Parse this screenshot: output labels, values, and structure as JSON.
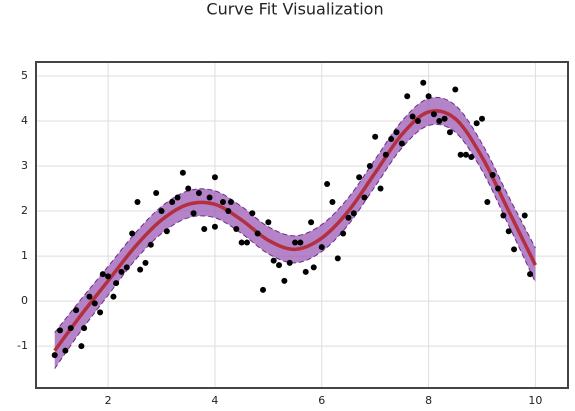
{
  "chart_data": {
    "type": "curve-fit",
    "title": "Curve Fit Visualization",
    "xlim": [
      0.65,
      10.61
    ],
    "ylim": [
      -1.93,
      5.31
    ],
    "xticks": [
      2,
      4,
      6,
      8,
      10
    ],
    "yticks": [
      -1,
      0,
      1,
      2,
      3,
      4,
      5
    ],
    "grid": true,
    "points": {
      "color": "#000000",
      "x": [
        1.0,
        1.1,
        1.2,
        1.3,
        1.4,
        1.5,
        1.55,
        1.65,
        1.75,
        1.85,
        1.9,
        2.0,
        2.1,
        2.15,
        2.25,
        2.35,
        2.45,
        2.55,
        2.6,
        2.7,
        2.8,
        2.9,
        3.0,
        3.1,
        3.2,
        3.3,
        3.4,
        3.5,
        3.6,
        3.7,
        3.8,
        3.9,
        4.0,
        4.0,
        4.15,
        4.25,
        4.3,
        4.4,
        4.5,
        4.6,
        4.7,
        4.8,
        4.9,
        5.0,
        5.1,
        5.2,
        5.3,
        5.4,
        5.5,
        5.6,
        5.7,
        5.8,
        5.85,
        6.0,
        6.1,
        6.2,
        6.3,
        6.4,
        6.5,
        6.6,
        6.7,
        6.8,
        6.9,
        7.0,
        7.1,
        7.2,
        7.3,
        7.4,
        7.5,
        7.6,
        7.7,
        7.8,
        7.9,
        8.0,
        8.1,
        8.2,
        8.3,
        8.4,
        8.5,
        8.6,
        8.7,
        8.8,
        8.9,
        9.0,
        9.1,
        9.2,
        9.3,
        9.4,
        9.5,
        9.6,
        9.8,
        9.9
      ],
      "y": [
        -1.2,
        -0.65,
        -1.1,
        -0.6,
        -0.2,
        -1.0,
        -0.6,
        0.1,
        -0.05,
        -0.25,
        0.6,
        0.55,
        0.1,
        0.4,
        0.65,
        0.75,
        1.5,
        2.2,
        0.7,
        0.85,
        1.25,
        2.4,
        2.0,
        1.55,
        2.2,
        2.3,
        2.85,
        2.5,
        1.95,
        2.4,
        1.6,
        2.3,
        1.65,
        2.75,
        2.2,
        2.0,
        2.2,
        1.6,
        1.3,
        1.3,
        1.95,
        1.5,
        0.25,
        1.75,
        0.9,
        0.8,
        0.45,
        0.85,
        1.3,
        1.3,
        0.65,
        1.75,
        0.75,
        1.2,
        2.6,
        2.2,
        0.95,
        1.5,
        1.85,
        1.95,
        2.75,
        2.3,
        3.0,
        3.65,
        2.5,
        3.25,
        3.6,
        3.75,
        3.5,
        4.55,
        4.1,
        4.0,
        4.85,
        4.55,
        4.15,
        4.0,
        4.05,
        3.75,
        4.7,
        3.25,
        3.25,
        3.2,
        3.95,
        4.05,
        2.2,
        2.8,
        2.5,
        1.9,
        1.55,
        1.15,
        1.9,
        0.6
      ]
    },
    "fit": {
      "color": "#b2303f",
      "band_color": "#9b59b6",
      "x": [
        1,
        1.5,
        2,
        2.5,
        3,
        3.5,
        4,
        4.5,
        5,
        5.5,
        6,
        6.5,
        7,
        7.5,
        8,
        8.5,
        9,
        9.5,
        10
      ],
      "values": [
        -1.1,
        -0.3,
        0.45,
        1.2,
        1.8,
        2.15,
        2.15,
        1.8,
        1.35,
        1.15,
        1.4,
        2.0,
        2.85,
        3.7,
        4.2,
        4.05,
        3.2,
        2.0,
        0.8
      ],
      "lower": [
        -1.5,
        -0.65,
        0.13,
        0.9,
        1.5,
        1.85,
        1.85,
        1.5,
        1.05,
        0.85,
        1.1,
        1.7,
        2.55,
        3.4,
        3.9,
        3.75,
        2.9,
        1.68,
        0.42
      ],
      "upper": [
        -0.7,
        0.05,
        0.77,
        1.5,
        2.1,
        2.45,
        2.45,
        2.1,
        1.65,
        1.45,
        1.7,
        2.3,
        3.15,
        4.0,
        4.5,
        4.35,
        3.5,
        2.32,
        1.18
      ]
    }
  }
}
